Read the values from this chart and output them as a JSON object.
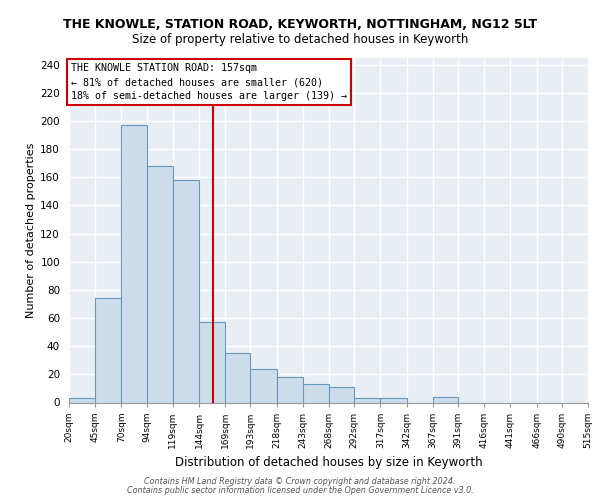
{
  "title": "THE KNOWLE, STATION ROAD, KEYWORTH, NOTTINGHAM, NG12 5LT",
  "subtitle": "Size of property relative to detached houses in Keyworth",
  "xlabel": "Distribution of detached houses by size in Keyworth",
  "ylabel": "Number of detached properties",
  "bar_edges": [
    20,
    45,
    70,
    94,
    119,
    144,
    169,
    193,
    218,
    243,
    268,
    292,
    317,
    342,
    367,
    391,
    416,
    441,
    466,
    490,
    515
  ],
  "bar_heights": [
    3,
    74,
    197,
    168,
    158,
    57,
    35,
    24,
    18,
    13,
    11,
    3,
    3,
    0,
    4,
    0,
    0,
    0,
    0,
    0
  ],
  "bar_color": "#cddceb",
  "bar_edge_color": "#6699bb",
  "ref_line_x": 157,
  "ref_line_color": "#cc0000",
  "annotation_text": "THE KNOWLE STATION ROAD: 157sqm\n← 81% of detached houses are smaller (620)\n18% of semi-detached houses are larger (139) →",
  "annotation_box_color": "#ffffff",
  "annotation_box_edge_color": "#cc0000",
  "ylim": [
    0,
    245
  ],
  "yticks": [
    0,
    20,
    40,
    60,
    80,
    100,
    120,
    140,
    160,
    180,
    200,
    220,
    240
  ],
  "tick_labels": [
    "20sqm",
    "45sqm",
    "70sqm",
    "94sqm",
    "119sqm",
    "144sqm",
    "169sqm",
    "193sqm",
    "218sqm",
    "243sqm",
    "268sqm",
    "292sqm",
    "317sqm",
    "342sqm",
    "367sqm",
    "391sqm",
    "416sqm",
    "441sqm",
    "466sqm",
    "490sqm",
    "515sqm"
  ],
  "footer_line1": "Contains HM Land Registry data © Crown copyright and database right 2024.",
  "footer_line2": "Contains public sector information licensed under the Open Government Licence v3.0.",
  "bg_color": "#e8eef4",
  "grid_color": "#ffffff"
}
